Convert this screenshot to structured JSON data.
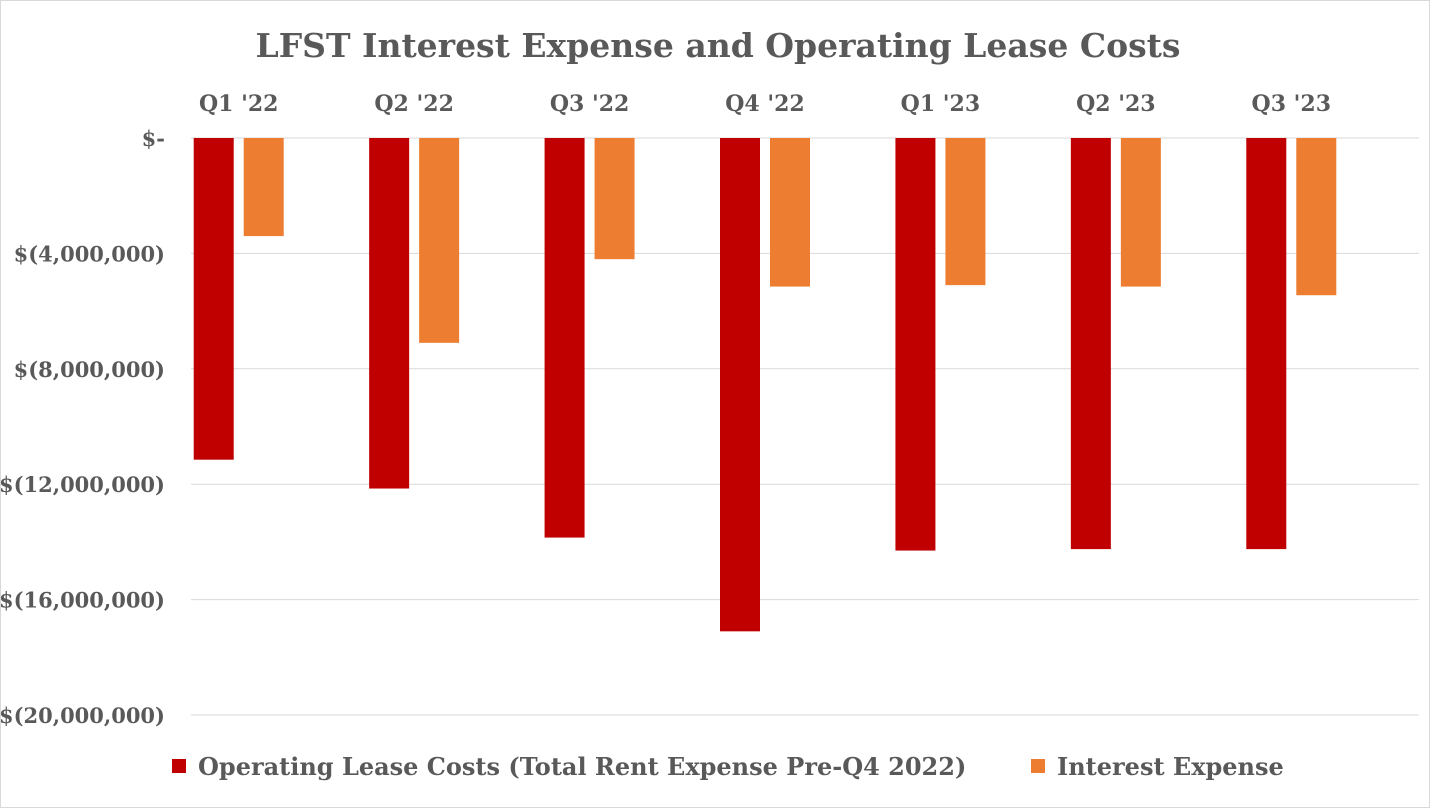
{
  "chart_data": {
    "type": "bar",
    "title": "LFST Interest Expense and Operating Lease Costs",
    "categories": [
      "Q1 '22",
      "Q2 '22",
      "Q3 '22",
      "Q4 '22",
      "Q1 '23",
      "Q2 '23",
      "Q3 '23"
    ],
    "series": [
      {
        "name": "Operating Lease Costs (Total Rent Expense Pre-Q4 2022)",
        "color": "#c00000",
        "values": [
          -11150000,
          -12150000,
          -13850000,
          -17100000,
          -14300000,
          -14250000,
          -14250000
        ]
      },
      {
        "name": "Interest Expense",
        "color": "#ed7d31",
        "values": [
          -3400000,
          -7100000,
          -4200000,
          -5150000,
          -5100000,
          -5150000,
          -5450000
        ]
      }
    ],
    "ylim": [
      -20000000,
      0
    ],
    "yticks": [
      0,
      -4000000,
      -8000000,
      -12000000,
      -16000000,
      -20000000
    ],
    "ytick_labels": [
      "$-",
      "$(4,000,000)",
      "$(8,000,000)",
      "$(12,000,000)",
      "$(16,000,000)",
      "$(20,000,000)"
    ],
    "xlabel": "",
    "ylabel": "",
    "category_axis_position": "top",
    "grid": true,
    "legend_position": "bottom"
  }
}
